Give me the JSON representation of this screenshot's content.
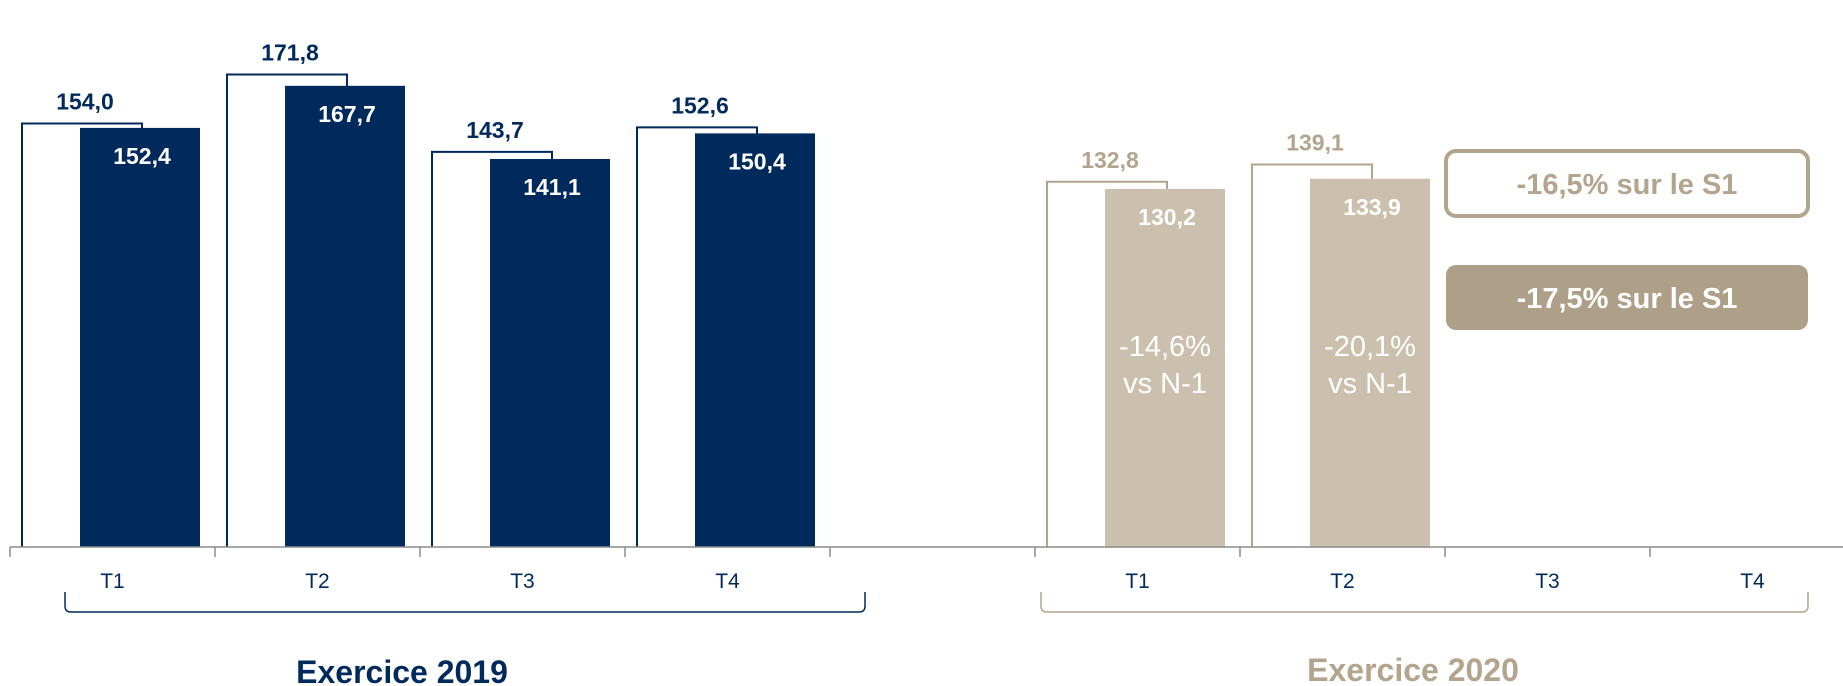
{
  "chart_data": {
    "type": "bar",
    "ylim": [
      0,
      200
    ],
    "groups": [
      {
        "name": "Exercice 2019",
        "color": "#002a5c",
        "categories": [
          "T1",
          "T2",
          "T3",
          "T4"
        ],
        "series": [
          {
            "values": [
              154.0,
              171.8,
              143.7,
              152.6
            ],
            "labels": [
              "154,0",
              "171,8",
              "143,7",
              "152,6"
            ],
            "style": "outline"
          },
          {
            "values": [
              152.4,
              167.7,
              141.1,
              150.4
            ],
            "labels": [
              "152,4",
              "167,7",
              "141,1",
              "150,4"
            ],
            "style": "filled"
          }
        ]
      },
      {
        "name": "Exercice 2020",
        "color": "#b3a48e",
        "fill": "#cbbfad",
        "categories": [
          "T1",
          "T2",
          "T3",
          "T4"
        ],
        "series": [
          {
            "values": [
              132.8,
              139.1,
              null,
              null
            ],
            "labels": [
              "132,8",
              "139,1"
            ],
            "style": "outline"
          },
          {
            "values": [
              130.2,
              133.9,
              null,
              null
            ],
            "labels": [
              "130,2",
              "133,9"
            ],
            "style": "filled"
          }
        ],
        "annotations": [
          {
            "line1": "-14,6%",
            "line2": "vs N-1"
          },
          {
            "line1": "-20,1%",
            "line2": "vs N-1"
          }
        ]
      }
    ],
    "callouts": [
      {
        "text": "-16,5% sur le S1",
        "style": "outline"
      },
      {
        "text": "-17,5% sur le S1",
        "style": "filled"
      }
    ]
  },
  "colors": {
    "navy": "#002a5c",
    "beige": "#b3a48e",
    "beige_fill": "#cbbfad",
    "callout_fill": "#ae9f88",
    "axis": "#8c8c8c"
  }
}
